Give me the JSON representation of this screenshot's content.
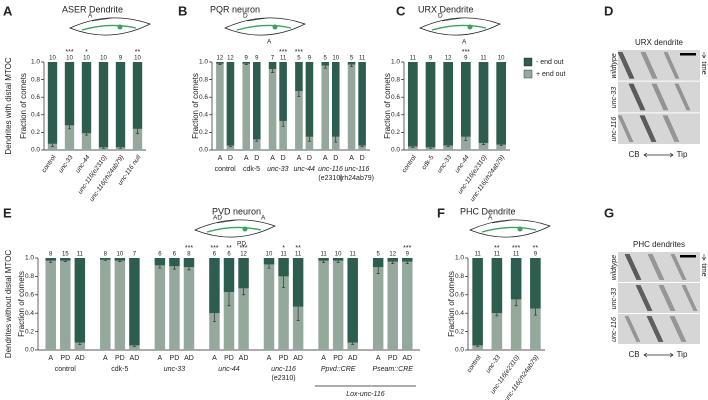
{
  "chart_data": [
    {
      "type": "bar",
      "stacked": true,
      "panel": "A",
      "title": "ASER Dendrite",
      "row_label": "Dendrites with distal MTOC",
      "ylabel": "Fraction of comets",
      "schematic_labels": [
        "A"
      ],
      "categories": [
        "control",
        "unc-33",
        "unc-44",
        "unc-116(e2310)",
        "unc-116(rh24ab79)",
        "unc-116 null"
      ],
      "series": [
        {
          "name": "+ end out",
          "color": "#94a89c",
          "values": [
            0.07,
            0.28,
            0.19,
            0.03,
            0.03,
            0.24
          ],
          "errors": [
            0.03,
            0.04,
            0.02,
            0.01,
            0.01,
            0.05
          ]
        },
        {
          "name": "- end out",
          "color": "#2d5d4e",
          "values": [
            0.93,
            0.72,
            0.81,
            0.97,
            0.97,
            0.76
          ]
        }
      ],
      "n": [
        10,
        10,
        10,
        10,
        9,
        10
      ],
      "significance": [
        null,
        "***",
        "*",
        null,
        null,
        "**"
      ],
      "ylim": [
        0,
        1
      ],
      "yticks": [
        {
          "value": 0,
          "label": "0.0"
        },
        0.2,
        0.4,
        0.6,
        0.8,
        {
          "value": 1,
          "label": "1.0"
        }
      ]
    },
    {
      "type": "bar",
      "stacked": true,
      "panel": "B",
      "title": "PQR neuron",
      "ylabel": "Fraction of comets",
      "schematic_labels": [
        "D",
        "A"
      ],
      "categories": [
        "A",
        "D",
        "A",
        "D",
        "A",
        "D",
        "A",
        "D",
        "A",
        "D",
        "A",
        "D"
      ],
      "groups": [
        [
          "control"
        ],
        [
          "cdk-5"
        ],
        [
          "unc-33"
        ],
        [
          "unc-44"
        ],
        [
          "unc-116",
          "(e2310)"
        ],
        [
          "unc-116",
          "(rh24ab79)"
        ]
      ],
      "series": [
        {
          "name": "+ end out",
          "color": "#94a89c",
          "values": [
            0.98,
            0.05,
            0.98,
            0.12,
            0.92,
            0.33,
            0.67,
            0.15,
            0.96,
            0.15,
            0.97,
            0.05
          ],
          "errors": [
            0.01,
            0.01,
            0.01,
            0.02,
            0.04,
            0.06,
            0.06,
            0.05,
            0.03,
            0.06,
            0.02,
            0.01
          ]
        },
        {
          "name": "- end out",
          "color": "#2d5d4e",
          "values": [
            0.02,
            0.95,
            0.02,
            0.88,
            0.08,
            0.67,
            0.33,
            0.85,
            0.04,
            0.85,
            0.03,
            0.95
          ]
        }
      ],
      "n": [
        12,
        12,
        9,
        9,
        7,
        11,
        5,
        9,
        5,
        10,
        5,
        11
      ],
      "significance": [
        null,
        null,
        null,
        null,
        null,
        "***",
        "***",
        null,
        null,
        null,
        null,
        null
      ],
      "ylim": [
        0,
        1
      ],
      "yticks": [
        {
          "value": 0,
          "label": "0.0"
        },
        0.2,
        0.4,
        0.6,
        0.8,
        {
          "value": 1,
          "label": "1.0"
        }
      ]
    },
    {
      "type": "bar",
      "stacked": true,
      "panel": "C",
      "title": "URX Dendrite",
      "ylabel": "Fraction of comets",
      "legend": "right",
      "schematic_labels": [
        "D",
        "A"
      ],
      "categories": [
        "control",
        "cdk-5",
        "unc-33",
        "unc-44",
        "unc-116(e2310)",
        "unc-116(rh24ab79)"
      ],
      "series": [
        {
          "name": "+ end out",
          "color": "#94a89c",
          "values": [
            0.04,
            0.03,
            0.05,
            0.15,
            0.08,
            0.06
          ],
          "errors": [
            0.01,
            0.01,
            0.01,
            0.04,
            0.02,
            0.01
          ]
        },
        {
          "name": "- end out",
          "color": "#2d5d4e",
          "values": [
            0.96,
            0.97,
            0.95,
            0.85,
            0.92,
            0.94
          ]
        }
      ],
      "n": [
        11,
        9,
        12,
        9,
        11,
        10
      ],
      "significance": [
        null,
        null,
        null,
        "***",
        null,
        null
      ],
      "ylim": [
        0,
        1
      ],
      "yticks": [
        {
          "value": 0,
          "label": "0.0"
        },
        0.2,
        0.4,
        0.6,
        0.8,
        {
          "value": 1,
          "label": "1.0"
        }
      ]
    },
    {
      "type": "bar",
      "stacked": true,
      "panel": "E",
      "title": "PVD neuron",
      "row_label": "Dendrites without distal MTOC",
      "ylabel": "Fraction of comets",
      "schematic_labels": [
        "AD",
        "PD",
        "A"
      ],
      "categories": [
        "A",
        "PD",
        "AD",
        "A",
        "PD",
        "AD",
        "A",
        "PD",
        "AD",
        "A",
        "PD",
        "AD",
        "A",
        "PD",
        "AD",
        "A",
        "PD",
        "AD",
        "A",
        "PD",
        "AD"
      ],
      "groups": [
        [
          "control"
        ],
        [
          "cdk-5"
        ],
        [
          "unc-33"
        ],
        [
          "unc-44"
        ],
        [
          "unc-116",
          "(e2310)"
        ],
        [
          "Ppvd::CRE"
        ],
        [
          "Pseam::CRE"
        ]
      ],
      "bracket": "Lox-unc-116",
      "series": [
        {
          "name": "+ end out",
          "color": "#94a89c",
          "values": [
            0.97,
            0.97,
            0.08,
            0.98,
            0.97,
            0.05,
            0.92,
            0.91,
            0.9,
            0.4,
            0.63,
            0.67,
            0.93,
            0.8,
            0.47,
            0.97,
            0.97,
            0.08,
            0.9,
            0.96,
            0.96
          ],
          "errors": [
            0.02,
            0.01,
            0.02,
            0.01,
            0.01,
            0.01,
            0.03,
            0.03,
            0.03,
            0.09,
            0.15,
            0.07,
            0.04,
            0.12,
            0.15,
            0.02,
            0.02,
            0.02,
            0.07,
            0.02,
            0.02
          ]
        },
        {
          "name": "- end out",
          "color": "#2d5d4e",
          "values": [
            0.03,
            0.03,
            0.92,
            0.02,
            0.03,
            0.95,
            0.08,
            0.09,
            0.1,
            0.6,
            0.37,
            0.33,
            0.07,
            0.2,
            0.53,
            0.03,
            0.03,
            0.92,
            0.1,
            0.04,
            0.04
          ]
        }
      ],
      "n": [
        8,
        15,
        11,
        8,
        10,
        7,
        6,
        6,
        8,
        6,
        6,
        12,
        10,
        11,
        11,
        11,
        10,
        11,
        5,
        12,
        9
      ],
      "significance": [
        null,
        null,
        null,
        null,
        null,
        null,
        null,
        null,
        "***",
        "***",
        "**",
        "***",
        null,
        "*",
        "**",
        null,
        null,
        null,
        null,
        null,
        "***"
      ],
      "ylim": [
        0,
        1
      ],
      "yticks": [
        {
          "value": 0,
          "label": "0.0"
        },
        0.2,
        0.4,
        0.6,
        0.8,
        {
          "value": 1,
          "label": "1.0"
        }
      ]
    },
    {
      "type": "bar",
      "stacked": true,
      "panel": "F",
      "title": "PHC Dendrite",
      "ylabel": "Fraction of comets",
      "schematic_labels": [
        "A"
      ],
      "categories": [
        "control",
        "unc-33",
        "unc-116(e2310)",
        "unc-116(rh24ab79)"
      ],
      "series": [
        {
          "name": "+ end out",
          "color": "#94a89c",
          "values": [
            0.05,
            0.4,
            0.55,
            0.45
          ],
          "errors": [
            0.01,
            0.03,
            0.07,
            0.07
          ]
        },
        {
          "name": "- end out",
          "color": "#2d5d4e",
          "values": [
            0.95,
            0.6,
            0.45,
            0.55
          ]
        }
      ],
      "n": [
        11,
        11,
        11,
        9
      ],
      "significance": [
        null,
        "**",
        "***",
        "**"
      ],
      "ylim": [
        0,
        1
      ],
      "yticks": [
        {
          "value": 0,
          "label": "0.0"
        },
        0.2,
        0.4,
        0.6,
        0.8,
        {
          "value": 1,
          "label": "1.0"
        }
      ]
    }
  ],
  "image_panels": [
    {
      "panel": "D",
      "title": "URX dendrite",
      "rows": [
        "wildtype",
        "unc-33",
        "unc-116"
      ],
      "axis": [
        "CB",
        "Tip"
      ],
      "time": "time"
    },
    {
      "panel": "G",
      "title": "PHC dendrites",
      "rows": [
        "wildtype",
        "unc-33",
        "unc-116"
      ],
      "axis": [
        "CB",
        "Tip"
      ],
      "time": "time"
    }
  ]
}
